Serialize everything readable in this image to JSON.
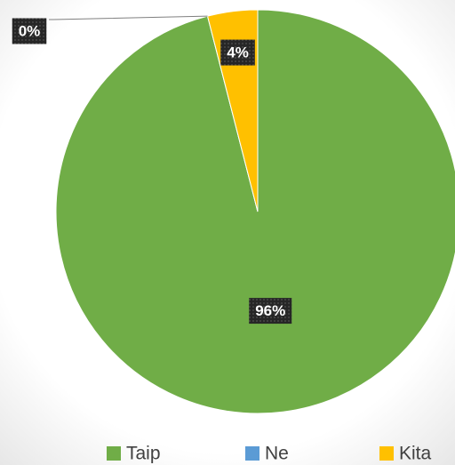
{
  "chart_data": {
    "type": "pie",
    "categories": [
      "Taip",
      "Ne",
      "Kita"
    ],
    "values": [
      96,
      0,
      4
    ],
    "value_labels": [
      "96%",
      "0%",
      "4%"
    ],
    "colors": [
      "#70ad47",
      "#5b9bd5",
      "#ffc000"
    ],
    "legend": "bottom"
  }
}
